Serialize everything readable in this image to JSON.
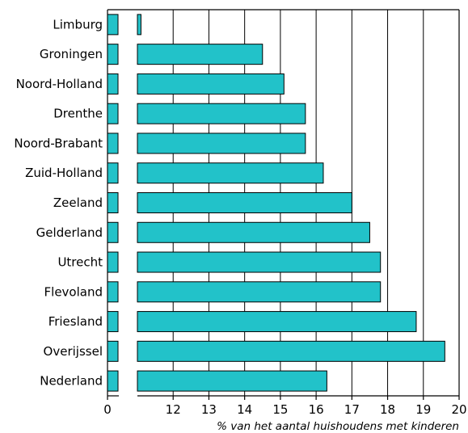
{
  "chart_data": {
    "type": "bar",
    "orientation": "horizontal",
    "axis_break": true,
    "categories": [
      "Limburg",
      "Groningen",
      "Noord-Holland",
      "Drenthe",
      "Noord-Brabant",
      "Zuid-Holland",
      "Zeeland",
      "Gelderland",
      "Utrecht",
      "Flevoland",
      "Friesland",
      "Overijssel",
      "Nederland"
    ],
    "values": [
      11.1,
      14.5,
      15.1,
      15.7,
      15.7,
      16.2,
      17.0,
      17.5,
      17.8,
      17.8,
      18.8,
      19.6,
      16.3
    ],
    "xlabel": "% van het aantal huishoudens met kinderen",
    "ylabel": "",
    "xlim": [
      11,
      20
    ],
    "x_ticks": [
      "0",
      "12",
      "13",
      "14",
      "15",
      "16",
      "17",
      "18",
      "19",
      "20"
    ],
    "grid": true,
    "bar_color": "#22c2c9",
    "bar_outline_color": "#000000"
  }
}
